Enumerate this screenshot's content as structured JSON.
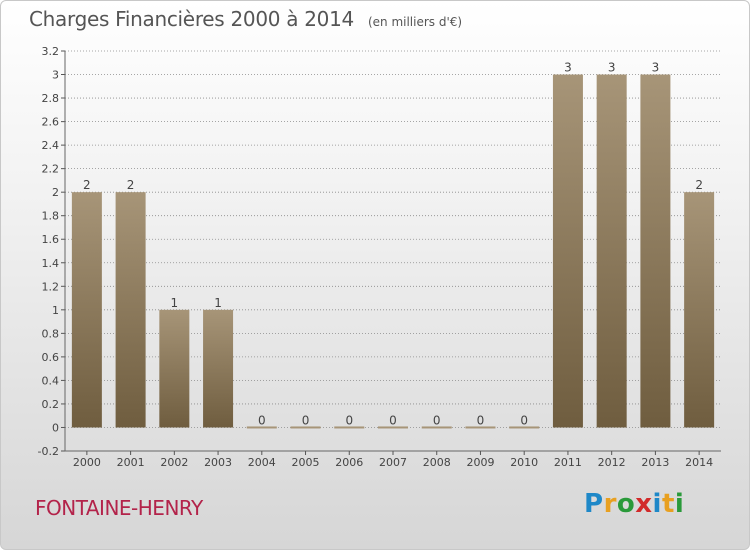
{
  "header": {
    "title": "Charges Financières 2000 à 2014",
    "unit": "(en milliers d'€)"
  },
  "footer": {
    "commune": "FONTAINE-HENRY",
    "brand_letters": [
      {
        "ch": "P",
        "color": "#1e88c8"
      },
      {
        "ch": "r",
        "color": "#e8a020"
      },
      {
        "ch": "o",
        "color": "#2a9a3a"
      },
      {
        "ch": "x",
        "color": "#d22a2a"
      },
      {
        "ch": "i",
        "color": "#1e88c8"
      },
      {
        "ch": "t",
        "color": "#e8a020"
      },
      {
        "ch": "i",
        "color": "#2a9a3a"
      }
    ]
  },
  "colors": {
    "bar_light": "#a79578",
    "bar_dark": "#6f5d3f",
    "grid": "#8a8a8a"
  },
  "chart_data": {
    "type": "bar",
    "title": "Charges Financières 2000 à 2014",
    "subtitle": "(en milliers d'€)",
    "categories": [
      "2000",
      "2001",
      "2002",
      "2003",
      "2004",
      "2005",
      "2006",
      "2007",
      "2008",
      "2009",
      "2010",
      "2011",
      "2012",
      "2013",
      "2014"
    ],
    "values": [
      2,
      2,
      1,
      1,
      0,
      0,
      0,
      0,
      0,
      0,
      0,
      3,
      3,
      3,
      2
    ],
    "data_labels": [
      "2",
      "2",
      "1",
      "1",
      "0",
      "0",
      "0",
      "0",
      "0",
      "0",
      "0",
      "3",
      "3",
      "3",
      "2"
    ],
    "ylim": [
      -0.2,
      3.2
    ],
    "yticks": [
      -0.2,
      0,
      0.2,
      0.4,
      0.6,
      0.8,
      1,
      1.2,
      1.4,
      1.6,
      1.8,
      2,
      2.2,
      2.4,
      2.6,
      2.8,
      3,
      3.2
    ],
    "ytick_labels": [
      "-0.2",
      "0",
      "0.2",
      "0.4",
      "0.6",
      "0.8",
      "1",
      "1.2",
      "1.4",
      "1.6",
      "1.8",
      "2",
      "2.2",
      "2.4",
      "2.6",
      "2.8",
      "3",
      "3.2"
    ],
    "grid": true,
    "grid_style": "dotted",
    "legend": "none"
  }
}
